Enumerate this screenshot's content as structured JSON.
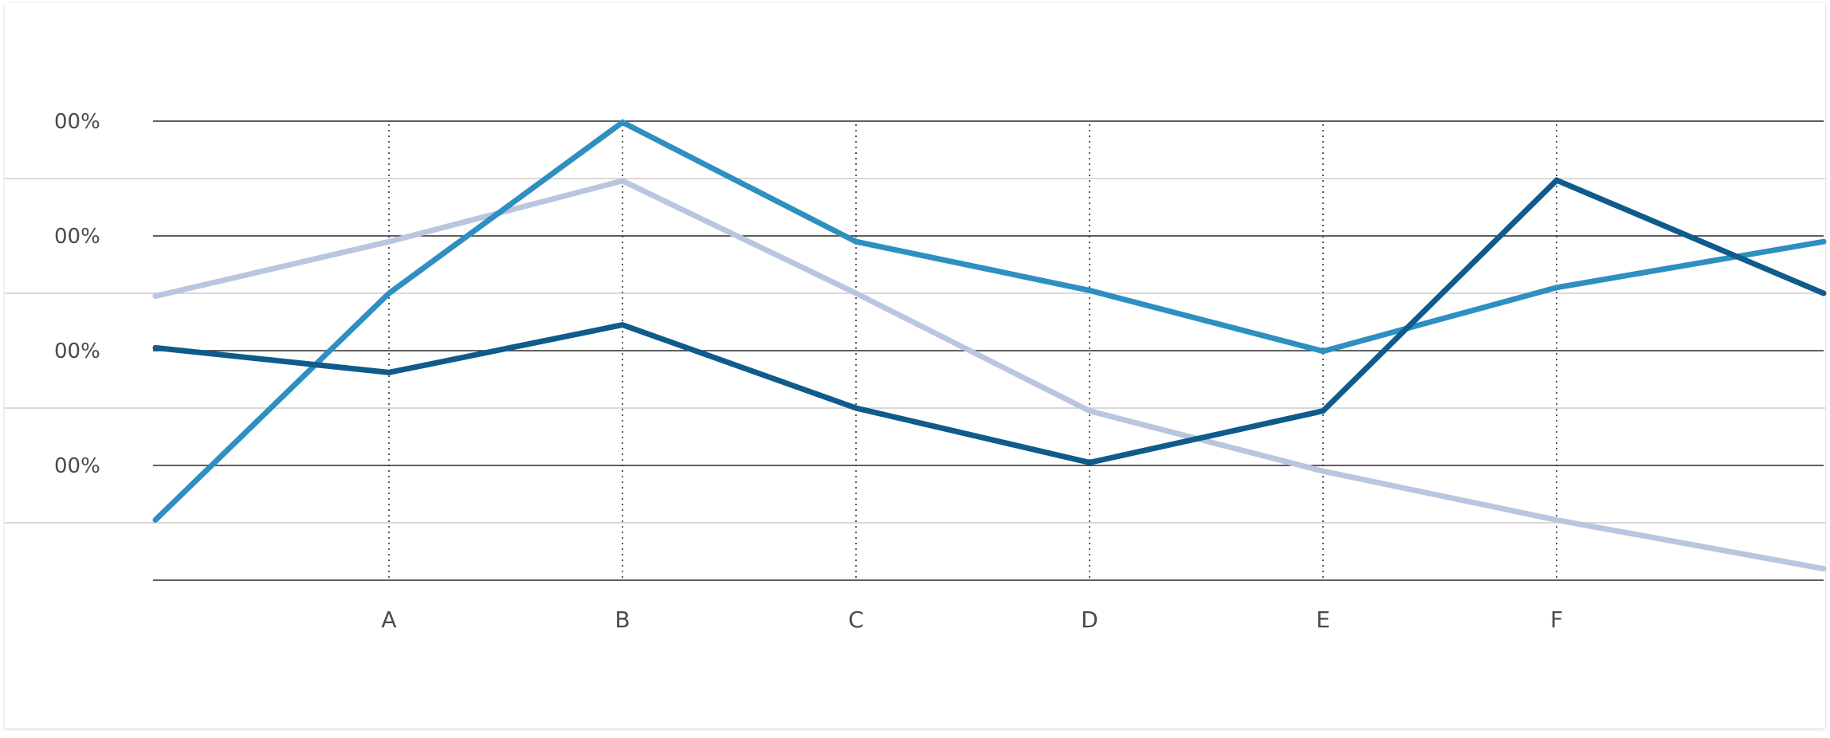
{
  "chart_data": {
    "type": "line",
    "categories": [
      "",
      "A",
      "B",
      "C",
      "D",
      "E",
      "F",
      ""
    ],
    "x_tick_labels": [
      "A",
      "B",
      "C",
      "D",
      "E",
      "F"
    ],
    "y_tick_labels": [
      "00%",
      "00%",
      "00%",
      "00%"
    ],
    "ylim": [
      -1,
      7
    ],
    "grid": true,
    "colors": {
      "dark": "#0e5b8c",
      "medium": "#2e8fc1",
      "light": "#b9c6df"
    },
    "series": [
      {
        "color": "#b9c6df",
        "values": [
          4.95,
          5.9,
          6.96,
          5.0,
          2.95,
          1.9,
          1.05,
          0.2
        ]
      },
      {
        "color": "#2e8fc1",
        "values": [
          1.05,
          5.0,
          7.98,
          5.9,
          5.05,
          3.99,
          5.1,
          5.9
        ]
      },
      {
        "color": "#0e5b8c",
        "values": [
          4.05,
          3.62,
          4.45,
          3.0,
          2.05,
          2.95,
          6.97,
          5.0
        ]
      }
    ]
  }
}
